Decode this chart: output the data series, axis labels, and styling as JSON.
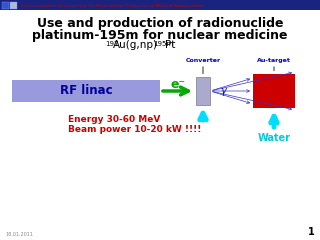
{
  "title_line1": "Use and production of radionuclide",
  "title_line2": "platinum-195m for nuclear medicine",
  "header_text": "Instrumentation Development for Photonuclear Production of Medical Radionuclides",
  "header_bg": "#1a237e",
  "header_red_text": "#cc0000",
  "bg_color": "#ffffff",
  "rf_linac_box_color": "#9999dd",
  "rf_linac_text": "RF linac",
  "rf_linac_text_color": "#000099",
  "converter_label": "Converter",
  "converter_label_color": "#0000cc",
  "au_target_label": "Au-target",
  "au_target_label_color": "#0000cc",
  "converter_box_color": "#aaaacc",
  "au_target_box_color": "#cc0000",
  "electron_arrow_color": "#00aa00",
  "electron_label_color": "#00aa00",
  "gamma_label_color": "#0000cc",
  "water_label": "Water",
  "water_label_color": "#00ccdd",
  "water_arrow_color": "#00ddff",
  "energy_text_line1": "Energy 30-60 MeV",
  "energy_text_line2": "Beam power 10-20 kW !!!!",
  "energy_text_color": "#cc0000",
  "date_text": "18.01.2011",
  "page_num": "1",
  "footer_color": "#888888",
  "title_fontsize": 9.0,
  "rf_fontsize": 8.5
}
